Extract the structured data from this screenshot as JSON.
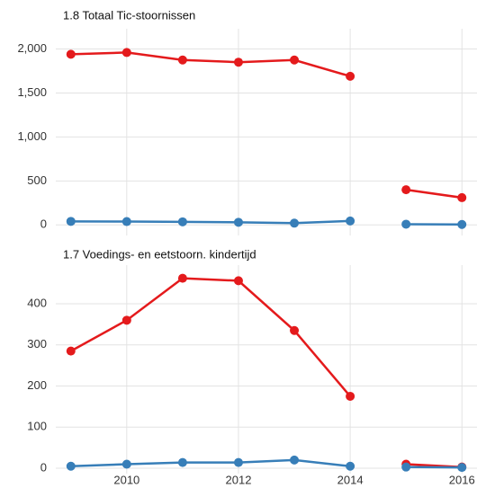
{
  "chart_data": [
    {
      "type": "line",
      "title": "1.8 Totaal Tic-stoornissen",
      "x": [
        2009,
        2010,
        2011,
        2012,
        2013,
        2014,
        null,
        2015,
        2016
      ],
      "series": [
        {
          "name": null,
          "color": "#e41a1c",
          "values": [
            1940,
            1960,
            1875,
            1850,
            1875,
            1690,
            null,
            400,
            310
          ]
        },
        {
          "name": null,
          "color": "#377eb8",
          "values": [
            40,
            38,
            35,
            30,
            20,
            45,
            null,
            8,
            5
          ]
        }
      ],
      "xlim": [
        2008.73,
        2016.27
      ],
      "xticks": [
        2010,
        2012,
        2014,
        2016
      ],
      "show_xtick_labels": false,
      "ylim": [
        -120,
        2230
      ],
      "yticks": [
        0,
        500,
        {
          "value": 1000,
          "label": "1,000"
        },
        {
          "value": 1500,
          "label": "1,500"
        },
        {
          "value": 2000,
          "label": "2,000"
        }
      ],
      "grid": true
    },
    {
      "type": "line",
      "title": "1.7 Voedings- en eetstoorn. kindertijd",
      "x": [
        2009,
        2010,
        2011,
        2012,
        2013,
        2014,
        null,
        2015,
        2016
      ],
      "series": [
        {
          "name": null,
          "color": "#e41a1c",
          "values": [
            285,
            360,
            462,
            456,
            335,
            175,
            null,
            10,
            3
          ]
        },
        {
          "name": null,
          "color": "#377eb8",
          "values": [
            5,
            10,
            14,
            14,
            20,
            5,
            null,
            3,
            2
          ]
        }
      ],
      "xlim": [
        2008.73,
        2016.27
      ],
      "xticks": [
        2010,
        2012,
        2014,
        2016
      ],
      "show_xtick_labels": true,
      "ylim": [
        -13,
        494
      ],
      "yticks": [
        0,
        100,
        200,
        300,
        400
      ],
      "grid": true
    }
  ]
}
